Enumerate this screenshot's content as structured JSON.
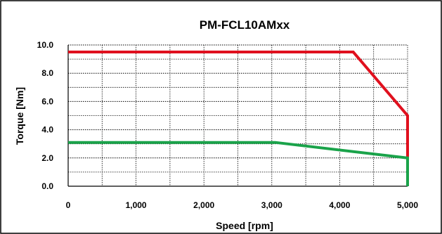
{
  "chart_data": {
    "type": "line",
    "title": "PM-FCL10AMxx",
    "xlabel": "Speed [rpm]",
    "ylabel": "Torque [Nm]",
    "xlim": [
      0,
      5000
    ],
    "ylim": [
      0,
      10
    ],
    "x_ticks": [
      0,
      1000,
      2000,
      3000,
      4000,
      5000
    ],
    "x_tick_labels": [
      "0",
      "1,000",
      "2,000",
      "3,000",
      "4,000",
      "5,000"
    ],
    "y_ticks": [
      0,
      2,
      4,
      6,
      8,
      10
    ],
    "y_tick_labels": [
      "0.0",
      "2.0",
      "4.0",
      "6.0",
      "8.0",
      "10.0"
    ],
    "x_minor_step": 500,
    "y_minor_step": 1,
    "grid": true,
    "legend": "none",
    "series": [
      {
        "color": "#e0101e",
        "points": [
          [
            0,
            9.5
          ],
          [
            4200,
            9.5
          ],
          [
            5000,
            5.0
          ],
          [
            5000,
            0
          ]
        ]
      },
      {
        "color": "#1aa34a",
        "points": [
          [
            0,
            3.1
          ],
          [
            3050,
            3.1
          ],
          [
            5000,
            2.0
          ],
          [
            5000,
            0
          ]
        ]
      }
    ]
  }
}
